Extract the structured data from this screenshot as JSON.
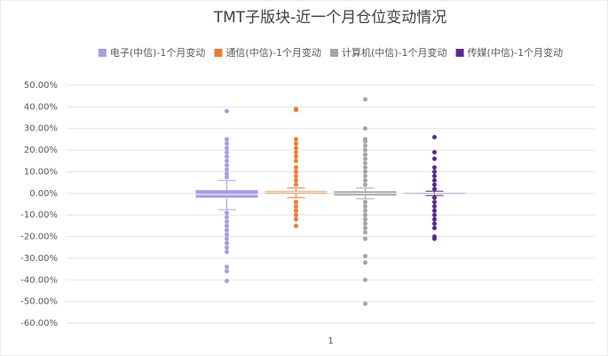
{
  "chart_data": {
    "type": "box",
    "title": "TMT子版块-近一个月仓位变动情况",
    "categories": [
      "1"
    ],
    "ylim": [
      -60,
      50
    ],
    "yticks": [
      {
        "value": -60,
        "label": "-60.00%"
      },
      {
        "value": -50,
        "label": "-50.00%"
      },
      {
        "value": -40,
        "label": "-40.00%"
      },
      {
        "value": -30,
        "label": "-30.00%"
      },
      {
        "value": -20,
        "label": "-20.00%"
      },
      {
        "value": -10,
        "label": "-10.00%"
      },
      {
        "value": 0,
        "label": "0.00%"
      },
      {
        "value": 10,
        "label": "10.00%"
      },
      {
        "value": 20,
        "label": "20.00%"
      },
      {
        "value": 30,
        "label": "30.00%"
      },
      {
        "value": 40,
        "label": "40.00%"
      },
      {
        "value": 50,
        "label": "50.00%"
      }
    ],
    "grid": true,
    "legend": "top",
    "series": [
      {
        "name": "电子(中信)-1个月变动",
        "color": "#a79de3",
        "q1": -2,
        "median": -0.5,
        "q3": 1.5,
        "whisker_low": -7.5,
        "whisker_high": 6,
        "outliers": [
          38,
          25,
          23,
          21,
          19,
          17,
          15,
          13,
          11,
          9,
          7.5,
          -9,
          -11,
          -13,
          -15,
          -17,
          -19,
          -21,
          -23,
          -25,
          -27,
          -34,
          -36,
          -40.5
        ]
      },
      {
        "name": "通信(中信)-1个月变动",
        "color": "#ed7d31",
        "q1": 0,
        "median": 0.5,
        "q3": 1,
        "whisker_low": -2,
        "whisker_high": 2.5,
        "outliers": [
          39,
          38.5,
          25,
          23,
          21,
          19,
          17,
          15,
          12,
          10,
          8,
          6,
          4,
          -4,
          -6,
          -8,
          -10,
          -12,
          -15
        ]
      },
      {
        "name": "计算机(中信)-1个月变动",
        "color": "#a5a5a5",
        "q1": -1,
        "median": 0,
        "q3": 1,
        "whisker_low": -2.5,
        "whisker_high": 2.5,
        "outliers": [
          43.5,
          30,
          25,
          24,
          22,
          20,
          18,
          16,
          14,
          12,
          10,
          8,
          6,
          4,
          -4,
          -6,
          -8,
          -10,
          -12,
          -14,
          -16,
          -18,
          -21,
          -29,
          -32,
          -40,
          -51
        ]
      },
      {
        "name": "传媒(中信)-1个月变动",
        "color": "#5b2a8c",
        "q1": -0.3,
        "median": 0,
        "q3": 0.3,
        "whisker_low": -1,
        "whisker_high": 1,
        "outliers": [
          26,
          19,
          16,
          12,
          10,
          8,
          6,
          4,
          2,
          -2,
          -4,
          -6,
          -8,
          -10,
          -12,
          -14,
          -16,
          -20,
          -21
        ]
      }
    ]
  }
}
